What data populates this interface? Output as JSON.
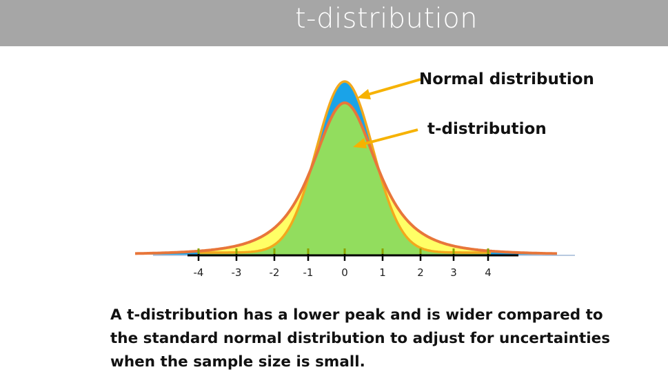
{
  "title": "t-distribution",
  "labels": {
    "normal": "Normal distribution",
    "t": "t-distribution"
  },
  "axis": {
    "ticks": [
      "-4",
      "-3",
      "-2",
      "-1",
      "0",
      "1",
      "2",
      "3",
      "4"
    ]
  },
  "caption": [
    "A t-distribution has a lower peak and is wider compared to",
    "the standard normal distribution to adjust for uncertainties",
    "when the sample size is small."
  ],
  "colors": {
    "title_bar": "#a6a6a6",
    "normal_fill": "#1aa3e8",
    "t_fill": "#ffff66",
    "inner_fill": "#92dd5e",
    "normal_stroke": "#f2a81d",
    "t_stroke": "#e8763a",
    "arrow": "#f6b200",
    "axis": "#000000",
    "tick_marks": "#8aa200"
  }
}
